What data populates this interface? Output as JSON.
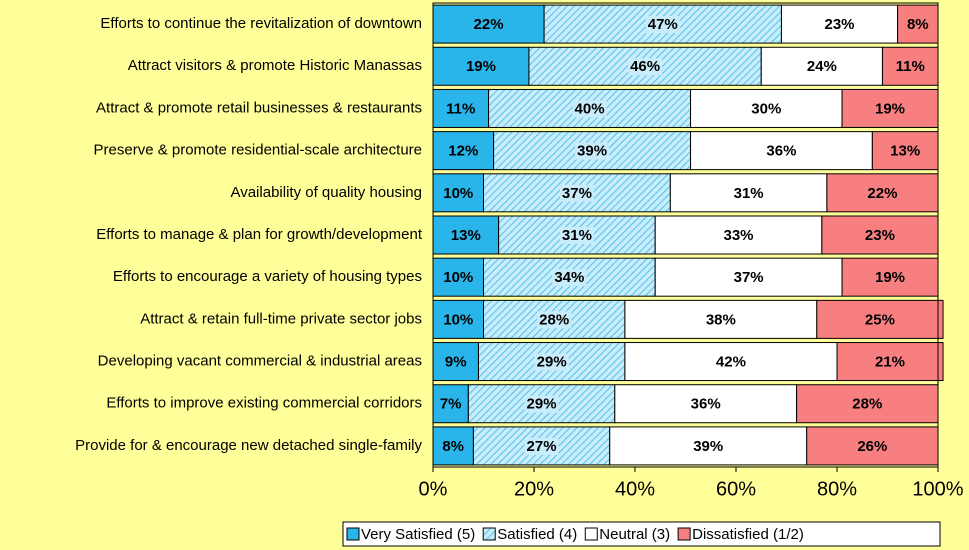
{
  "chart_data": {
    "type": "stacked-barh",
    "categories": [
      "Efforts to continue the revitalization of downtown",
      "Attract visitors & promote Historic Manassas",
      "Attract & promote retail businesses & restaurants",
      "Preserve & promote residential-scale architecture",
      "Availability of quality housing",
      "Efforts to manage & plan for growth/development",
      "Efforts to encourage a variety of housing types",
      "Attract & retain full-time private sector jobs",
      "Developing vacant commercial & industrial areas",
      "Efforts to improve existing commercial corridors",
      "Provide for & encourage new detached single-family"
    ],
    "series": [
      {
        "name": "Very Satisfied (5)",
        "color": "#29b5ea",
        "hatch": false,
        "values": [
          22,
          19,
          11,
          12,
          10,
          13,
          10,
          10,
          9,
          7,
          8
        ],
        "value_labels": [
          "22%",
          "19%",
          "11%",
          "12%",
          "10%",
          "13%",
          "10%",
          "10%",
          "9%",
          "7%",
          "8%"
        ]
      },
      {
        "name": "Satisfied (4)",
        "color": "#29b5ea",
        "hatch": true,
        "values": [
          47,
          46,
          40,
          39,
          37,
          31,
          34,
          28,
          29,
          29,
          27
        ],
        "value_labels": [
          "47%",
          "46%",
          "40%",
          "39%",
          "37%",
          "31%",
          "34%",
          "28%",
          "29%",
          "29%",
          "27%"
        ]
      },
      {
        "name": "Neutral (3)",
        "color": "#ffffff",
        "hatch": false,
        "values": [
          23,
          24,
          30,
          36,
          31,
          33,
          37,
          38,
          42,
          36,
          39
        ],
        "value_labels": [
          "23%",
          "24%",
          "30%",
          "36%",
          "31%",
          "33%",
          "37%",
          "38%",
          "42%",
          "36%",
          "39%"
        ]
      },
      {
        "name": "Dissatisfied (1/2)",
        "color": "#f77f7f",
        "hatch": false,
        "values": [
          8,
          11,
          19,
          13,
          22,
          23,
          19,
          25,
          21,
          28,
          26
        ],
        "value_labels": [
          "8%",
          "11%",
          "19%",
          "13%",
          "22%",
          "23%",
          "19%",
          "25%",
          "21%",
          "28%",
          "26%"
        ]
      }
    ],
    "xlim": [
      0,
      100
    ],
    "xticks": [
      {
        "value": 0,
        "label": "0%"
      },
      {
        "value": 20,
        "label": "20%"
      },
      {
        "value": 40,
        "label": "40%"
      },
      {
        "value": 60,
        "label": "60%"
      },
      {
        "value": 80,
        "label": "80%"
      },
      {
        "value": 100,
        "label": "100%"
      }
    ],
    "legend": "bottom"
  }
}
